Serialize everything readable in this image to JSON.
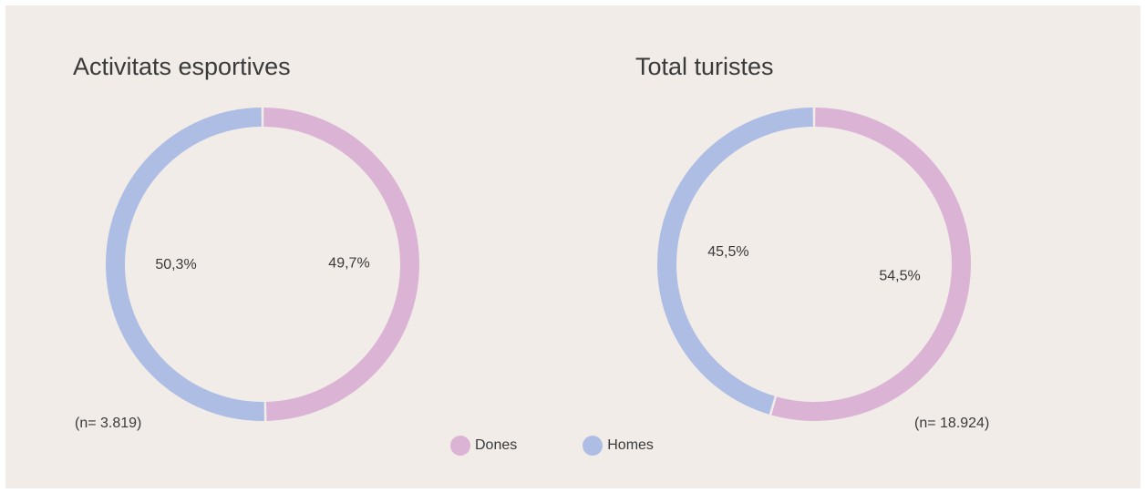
{
  "chart_data": [
    {
      "type": "pie",
      "title": "Activitats esportives",
      "note": "(n= 3.819)",
      "slices": [
        {
          "name": "Dones",
          "value": 49.7,
          "label": "49,7%",
          "color": "#dbb3d4"
        },
        {
          "name": "Homes",
          "value": 50.3,
          "label": "50,3%",
          "color": "#adbde3"
        }
      ]
    },
    {
      "type": "pie",
      "title": "Total turistes",
      "note": "(n= 18.924)",
      "slices": [
        {
          "name": "Dones",
          "value": 54.5,
          "label": "54,5%",
          "color": "#dbb3d4"
        },
        {
          "name": "Homes",
          "value": 45.5,
          "label": "45,5%",
          "color": "#adbde3"
        }
      ]
    }
  ],
  "legend": [
    {
      "label": "Dones",
      "color": "#dbb3d4"
    },
    {
      "label": "Homes",
      "color": "#adbde3"
    }
  ]
}
